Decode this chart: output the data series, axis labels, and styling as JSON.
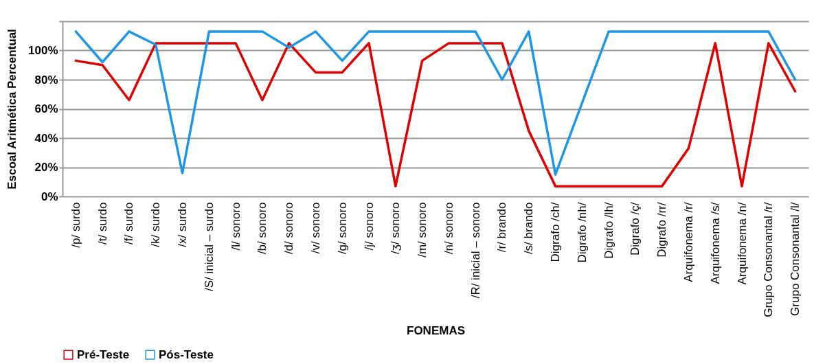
{
  "chart_data": {
    "type": "line",
    "xlabel": "FONEMAS",
    "ylabel": "Escoal Aritmética Percentual",
    "categories": [
      "/p/ surdo",
      "/t/ surdo",
      "/f/ surdo",
      "/k/ surdo",
      "/x/ surdo",
      "/S/ inicial – surdo",
      "/l/ sonoro",
      "/b/ sonoro",
      "/d/ sonoro",
      "/v/ sonoro",
      "/g/ sonoro",
      "/j/ sonoro",
      "/ʒ/ sonoro",
      "/m/ sonoro",
      "/n/ sonoro",
      "/R/ inicial – sonoro",
      "/r/ brando",
      "/s/ brando",
      "Digrafo /ch/",
      "Digrafo /nh/",
      "Digrafo /lh/",
      "Digrafo /ç/",
      "Digrafo /rr/",
      "Arquifonema /r/",
      "Arquifonema /s/",
      "Arquifonema /n/",
      "Grupo Consonantal /r/",
      "Grupo Consonantal /l/"
    ],
    "series": [
      {
        "name": "Pré-Teste",
        "color": "#e00000",
        "values": [
          93,
          90,
          66,
          105,
          105,
          105,
          105,
          66,
          105,
          85,
          85,
          105,
          7,
          93,
          105,
          105,
          105,
          45,
          7,
          7,
          7,
          7,
          7,
          33,
          105,
          7,
          105,
          72
        ]
      },
      {
        "name": "Pós-Teste",
        "color": "#1e96e6",
        "values": [
          113,
          92,
          113,
          104,
          16,
          113,
          113,
          113,
          102,
          113,
          93,
          113,
          113,
          113,
          113,
          113,
          80,
          113,
          15,
          64,
          113,
          113,
          113,
          113,
          113,
          113,
          113,
          80
        ]
      }
    ],
    "ylim": [
      0,
      120
    ],
    "yticks": [
      {
        "value": 0,
        "label": "0%"
      },
      {
        "value": 20,
        "label": "20%"
      },
      {
        "value": 40,
        "label": "40%"
      },
      {
        "value": 60,
        "label": "60%"
      },
      {
        "value": 80,
        "label": "80%"
      },
      {
        "value": 100,
        "label": "100%"
      },
      {
        "value": 120,
        "label": null
      }
    ],
    "grid": "y",
    "legend": "bottom left",
    "marker": "none",
    "line_style": "solid"
  }
}
